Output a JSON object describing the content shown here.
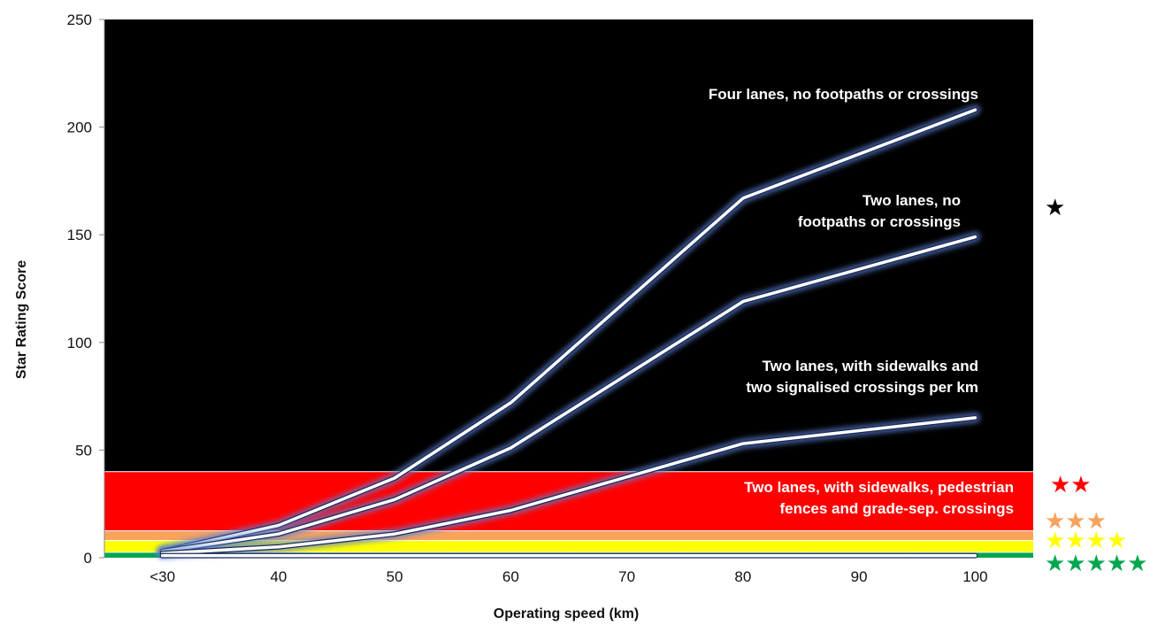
{
  "chart_data": {
    "type": "line",
    "title": "",
    "xlabel": "Operating speed (km)",
    "ylabel": "Star Rating Score",
    "categories": [
      "<30",
      "40",
      "50",
      "60",
      "70",
      "80",
      "90",
      "100"
    ],
    "ylim": [
      0,
      250
    ],
    "yticks": [
      0,
      50,
      100,
      150,
      200,
      250
    ],
    "grid": false,
    "background_color": "#000000",
    "line_color": "#ffffff",
    "series": [
      {
        "name": "Four lanes, no footpaths or crossings",
        "label_lines": [
          "Four lanes, no footpaths or crossings"
        ],
        "label_color": "#ffffff",
        "values": [
          3,
          15,
          37,
          72,
          null,
          167,
          null,
          208
        ]
      },
      {
        "name": "Two lanes, no footpaths or crossings",
        "label_lines": [
          "Two lanes, no",
          "footpaths or crossings"
        ],
        "label_color": "#ffffff",
        "values": [
          3,
          11,
          27,
          51,
          null,
          119,
          null,
          149
        ]
      },
      {
        "name": "Two lanes, with sidewalks and two signalised crossings per km",
        "label_lines": [
          "Two lanes, with sidewalks and",
          "two signalised crossings per km"
        ],
        "label_color": "#ffffff",
        "values": [
          2,
          5,
          11,
          22,
          null,
          53,
          null,
          65
        ]
      },
      {
        "name": "Two lanes, with sidewalks, pedestrian fences and grade-sep. crossings",
        "label_lines": [
          "Two lanes, with sidewalks, pedestrian",
          "fences and grade-sep. crossings"
        ],
        "label_color": "#ffffff",
        "values": [
          1,
          1,
          1,
          1,
          null,
          1,
          null,
          1
        ]
      }
    ],
    "bands": [
      {
        "stars": 5,
        "from": 0,
        "to": 2.5,
        "color": "#00a64f"
      },
      {
        "stars": 4,
        "from": 2.5,
        "to": 8,
        "color": "#ffff00"
      },
      {
        "stars": 3,
        "from": 8,
        "to": 12.5,
        "color": "#f7a35c"
      },
      {
        "stars": 2,
        "from": 12.5,
        "to": 40,
        "color": "#ff0000"
      },
      {
        "stars": 1,
        "from": 40,
        "to": 250,
        "color": "#000000"
      }
    ],
    "star_ratings": [
      {
        "symbol": "★",
        "color": "#000000"
      },
      {
        "symbol": "★★",
        "color": "#ff0000"
      },
      {
        "symbol": "★★★",
        "color": "#f7a35c"
      },
      {
        "symbol": "★★★★",
        "color": "#ffff00"
      },
      {
        "symbol": "★★★★★",
        "color": "#00a64f"
      }
    ]
  }
}
